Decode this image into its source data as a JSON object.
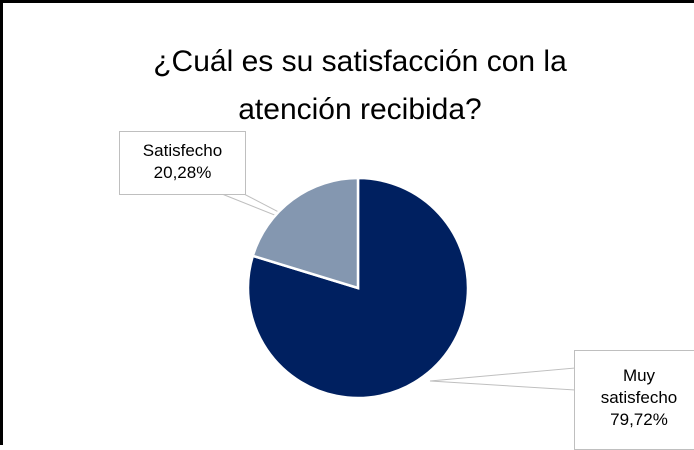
{
  "chart_data": {
    "type": "pie",
    "title": "¿Cuál es su satisfacción con la atención recibida?",
    "title_lines": [
      "¿Cuál es su satisfacción con la",
      "atención recibida?"
    ],
    "slices": [
      {
        "label": "Muy satisfecho",
        "label_lines": [
          "Muy",
          "satisfecho"
        ],
        "value": 79.72,
        "value_text": "79,72%",
        "color": "#002060"
      },
      {
        "label": "Satisfecho",
        "label_lines": [
          "Satisfecho"
        ],
        "value": 20.28,
        "value_text": "20,28%",
        "color": "#8497b0"
      }
    ],
    "legend": "none"
  }
}
